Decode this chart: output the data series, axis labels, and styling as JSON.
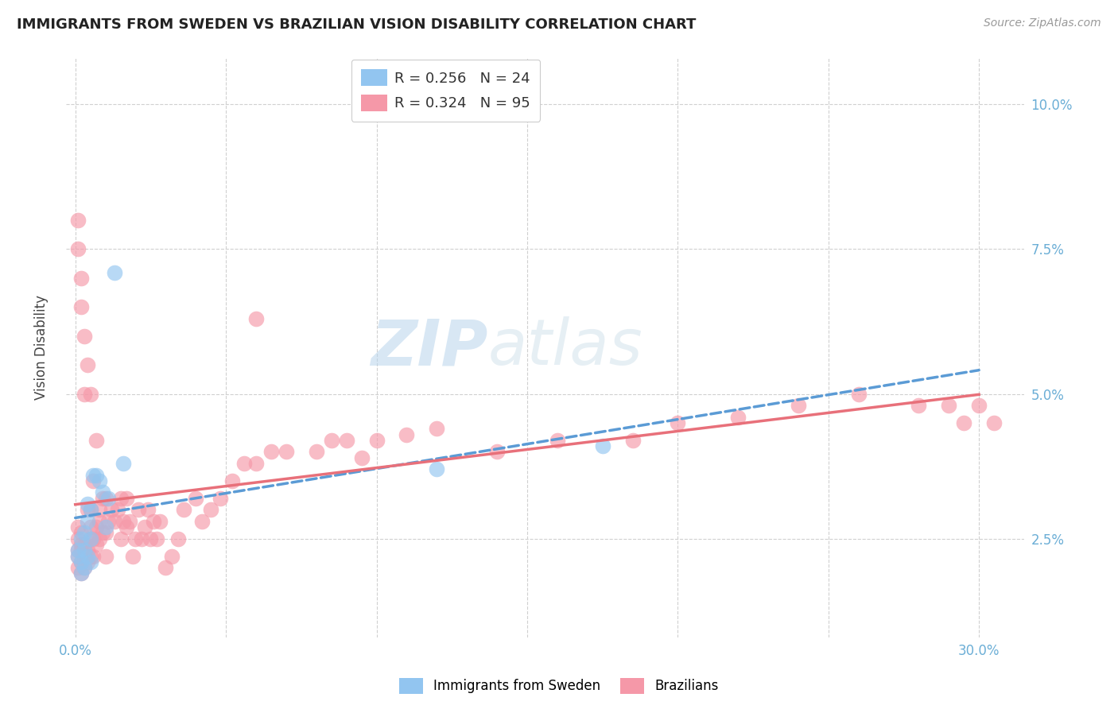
{
  "title": "IMMIGRANTS FROM SWEDEN VS BRAZILIAN VISION DISABILITY CORRELATION CHART",
  "source": "Source: ZipAtlas.com",
  "ylabel": "Vision Disability",
  "ylabel_ticks": [
    "2.5%",
    "5.0%",
    "7.5%",
    "10.0%"
  ],
  "ylabel_vals": [
    0.025,
    0.05,
    0.075,
    0.1
  ],
  "xlabel_ticks_shown": [
    "0.0%",
    "30.0%"
  ],
  "xlabel_vals_shown": [
    0.0,
    0.3
  ],
  "xlabel_grid_vals": [
    0.0,
    0.05,
    0.1,
    0.15,
    0.2,
    0.25,
    0.3
  ],
  "ylim": [
    0.008,
    0.108
  ],
  "xlim": [
    -0.003,
    0.315
  ],
  "sweden_R": 0.256,
  "sweden_N": 24,
  "brazil_R": 0.324,
  "brazil_N": 95,
  "sweden_color": "#92C5F0",
  "brazil_color": "#F598A8",
  "sweden_line_color": "#5B9BD5",
  "brazil_line_color": "#E8707A",
  "sweden_line_style": "--",
  "brazil_line_style": "-",
  "watermark_zip": "ZIP",
  "watermark_atlas": "atlas",
  "background_color": "#FFFFFF",
  "grid_color": "#D0D0D0",
  "tick_color": "#6BAED6",
  "legend_R_color_sweden": "#5B9BD5",
  "legend_N_color_sweden": "#E05050",
  "legend_R_color_brazil": "#E8707A",
  "legend_N_color_brazil": "#E05050",
  "sweden_x": [
    0.001,
    0.001,
    0.002,
    0.002,
    0.002,
    0.003,
    0.003,
    0.003,
    0.004,
    0.004,
    0.004,
    0.005,
    0.005,
    0.005,
    0.006,
    0.007,
    0.008,
    0.009,
    0.01,
    0.011,
    0.013,
    0.016,
    0.12,
    0.175
  ],
  "sweden_y": [
    0.022,
    0.023,
    0.019,
    0.021,
    0.025,
    0.02,
    0.023,
    0.026,
    0.022,
    0.028,
    0.031,
    0.021,
    0.025,
    0.03,
    0.036,
    0.036,
    0.035,
    0.033,
    0.027,
    0.032,
    0.071,
    0.038,
    0.037,
    0.041
  ],
  "brazil_x": [
    0.001,
    0.001,
    0.001,
    0.001,
    0.001,
    0.001,
    0.001,
    0.002,
    0.002,
    0.002,
    0.002,
    0.002,
    0.002,
    0.002,
    0.003,
    0.003,
    0.003,
    0.003,
    0.003,
    0.004,
    0.004,
    0.004,
    0.004,
    0.005,
    0.005,
    0.005,
    0.005,
    0.005,
    0.006,
    0.006,
    0.006,
    0.007,
    0.007,
    0.007,
    0.008,
    0.008,
    0.008,
    0.009,
    0.009,
    0.01,
    0.01,
    0.01,
    0.011,
    0.012,
    0.013,
    0.014,
    0.015,
    0.015,
    0.016,
    0.017,
    0.017,
    0.018,
    0.019,
    0.02,
    0.021,
    0.022,
    0.023,
    0.024,
    0.025,
    0.026,
    0.027,
    0.028,
    0.03,
    0.032,
    0.034,
    0.036,
    0.04,
    0.042,
    0.045,
    0.048,
    0.052,
    0.056,
    0.06,
    0.065,
    0.07,
    0.08,
    0.09,
    0.1,
    0.11,
    0.12,
    0.14,
    0.16,
    0.185,
    0.2,
    0.22,
    0.24,
    0.26,
    0.28,
    0.29,
    0.295,
    0.3,
    0.305,
    0.06,
    0.085,
    0.095
  ],
  "brazil_y": [
    0.02,
    0.022,
    0.023,
    0.025,
    0.027,
    0.075,
    0.08,
    0.019,
    0.021,
    0.023,
    0.024,
    0.026,
    0.065,
    0.07,
    0.02,
    0.022,
    0.024,
    0.05,
    0.06,
    0.021,
    0.023,
    0.03,
    0.055,
    0.022,
    0.025,
    0.027,
    0.03,
    0.05,
    0.022,
    0.025,
    0.035,
    0.024,
    0.027,
    0.042,
    0.025,
    0.028,
    0.03,
    0.026,
    0.032,
    0.022,
    0.026,
    0.032,
    0.028,
    0.03,
    0.028,
    0.03,
    0.025,
    0.032,
    0.028,
    0.027,
    0.032,
    0.028,
    0.022,
    0.025,
    0.03,
    0.025,
    0.027,
    0.03,
    0.025,
    0.028,
    0.025,
    0.028,
    0.02,
    0.022,
    0.025,
    0.03,
    0.032,
    0.028,
    0.03,
    0.032,
    0.035,
    0.038,
    0.038,
    0.04,
    0.04,
    0.04,
    0.042,
    0.042,
    0.043,
    0.044,
    0.04,
    0.042,
    0.042,
    0.045,
    0.046,
    0.048,
    0.05,
    0.048,
    0.048,
    0.045,
    0.048,
    0.045,
    0.063,
    0.042,
    0.039
  ]
}
